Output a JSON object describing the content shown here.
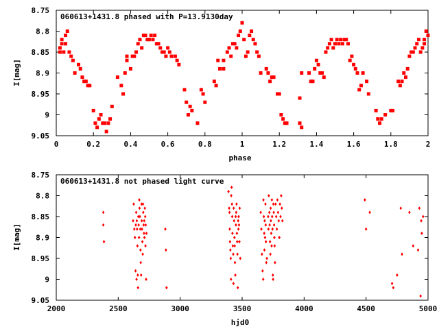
{
  "chart_data": [
    {
      "type": "scatter",
      "title": "060613+1431.8 phased with P=13.9130day",
      "xlabel": "phase",
      "ylabel": "I[mag]",
      "xlim": [
        0,
        2
      ],
      "ylim": [
        9.05,
        8.75
      ],
      "y_inverted": true,
      "grid": false,
      "marker": "filled-square",
      "color": "#ff0000",
      "x_ticks": [
        "0",
        "0.2",
        "0.4",
        "0.6",
        "0.8",
        "1",
        "1.2",
        "1.4",
        "1.6",
        "1.8",
        "2"
      ],
      "y_ticks": [
        "8.75",
        "8.8",
        "8.85",
        "8.9",
        "8.95",
        "9",
        "9.05"
      ],
      "points": [
        [
          0.02,
          8.84
        ],
        [
          0.02,
          8.85
        ],
        [
          0.03,
          8.82
        ],
        [
          0.03,
          8.83
        ],
        [
          0.04,
          8.85
        ],
        [
          0.05,
          8.81
        ],
        [
          0.05,
          8.83
        ],
        [
          0.06,
          8.8
        ],
        [
          0.07,
          8.85
        ],
        [
          0.08,
          8.86
        ],
        [
          0.09,
          8.87
        ],
        [
          0.1,
          8.9
        ],
        [
          0.12,
          8.88
        ],
        [
          0.13,
          8.89
        ],
        [
          0.14,
          8.91
        ],
        [
          0.15,
          8.92
        ],
        [
          0.16,
          8.92
        ],
        [
          0.17,
          8.93
        ],
        [
          0.18,
          8.93
        ],
        [
          0.2,
          8.99
        ],
        [
          0.21,
          9.02
        ],
        [
          0.22,
          9.03
        ],
        [
          0.23,
          9.01
        ],
        [
          0.24,
          9.0
        ],
        [
          0.25,
          9.02
        ],
        [
          0.26,
          9.02
        ],
        [
          0.27,
          9.04
        ],
        [
          0.28,
          9.02
        ],
        [
          0.29,
          9.01
        ],
        [
          0.3,
          8.98
        ],
        [
          0.33,
          8.91
        ],
        [
          0.35,
          8.93
        ],
        [
          0.36,
          8.95
        ],
        [
          0.37,
          8.9
        ],
        [
          0.38,
          8.87
        ],
        [
          0.38,
          8.86
        ],
        [
          0.4,
          8.89
        ],
        [
          0.41,
          8.86
        ],
        [
          0.42,
          8.86
        ],
        [
          0.43,
          8.85
        ],
        [
          0.44,
          8.83
        ],
        [
          0.45,
          8.82
        ],
        [
          0.46,
          8.84
        ],
        [
          0.47,
          8.81
        ],
        [
          0.48,
          8.81
        ],
        [
          0.49,
          8.82
        ],
        [
          0.5,
          8.82
        ],
        [
          0.51,
          8.81
        ],
        [
          0.52,
          8.82
        ],
        [
          0.53,
          8.81
        ],
        [
          0.54,
          8.83
        ],
        [
          0.55,
          8.83
        ],
        [
          0.56,
          8.84
        ],
        [
          0.57,
          8.85
        ],
        [
          0.58,
          8.85
        ],
        [
          0.59,
          8.86
        ],
        [
          0.6,
          8.84
        ],
        [
          0.61,
          8.85
        ],
        [
          0.62,
          8.86
        ],
        [
          0.64,
          8.86
        ],
        [
          0.65,
          8.87
        ],
        [
          0.66,
          8.88
        ],
        [
          0.69,
          8.94
        ],
        [
          0.7,
          8.97
        ],
        [
          0.71,
          9.0
        ],
        [
          0.72,
          8.98
        ],
        [
          0.73,
          8.99
        ],
        [
          0.76,
          9.02
        ],
        [
          0.78,
          8.94
        ],
        [
          0.79,
          8.95
        ],
        [
          0.8,
          8.97
        ],
        [
          0.85,
          8.92
        ],
        [
          0.86,
          8.93
        ],
        [
          0.87,
          8.87
        ],
        [
          0.88,
          8.89
        ],
        [
          0.9,
          8.87
        ],
        [
          0.9,
          8.89
        ],
        [
          0.92,
          8.85
        ],
        [
          0.93,
          8.84
        ],
        [
          0.94,
          8.86
        ],
        [
          0.95,
          8.83
        ],
        [
          0.96,
          8.83
        ],
        [
          0.97,
          8.84
        ],
        [
          0.98,
          8.81
        ],
        [
          0.99,
          8.8
        ],
        [
          1.0,
          8.78
        ],
        [
          1.01,
          8.82
        ],
        [
          1.02,
          8.86
        ],
        [
          1.03,
          8.85
        ],
        [
          1.04,
          8.81
        ],
        [
          1.05,
          8.8
        ],
        [
          1.06,
          8.82
        ],
        [
          1.07,
          8.83
        ],
        [
          1.08,
          8.85
        ],
        [
          1.09,
          8.86
        ],
        [
          1.1,
          8.9
        ],
        [
          1.13,
          8.89
        ],
        [
          1.14,
          8.9
        ],
        [
          1.15,
          8.92
        ],
        [
          1.16,
          8.91
        ],
        [
          1.17,
          8.91
        ],
        [
          1.19,
          8.95
        ],
        [
          1.2,
          8.95
        ],
        [
          1.21,
          9.0
        ],
        [
          1.22,
          9.01
        ],
        [
          1.23,
          9.02
        ],
        [
          1.24,
          9.02
        ],
        [
          1.31,
          8.96
        ],
        [
          1.31,
          9.02
        ],
        [
          1.32,
          9.03
        ],
        [
          1.32,
          8.9
        ],
        [
          1.36,
          8.9
        ],
        [
          1.37,
          8.92
        ],
        [
          1.38,
          8.92
        ],
        [
          1.39,
          8.89
        ],
        [
          1.4,
          8.87
        ],
        [
          1.41,
          8.88
        ],
        [
          1.42,
          8.9
        ],
        [
          1.43,
          8.9
        ],
        [
          1.44,
          8.91
        ],
        [
          1.45,
          8.85
        ],
        [
          1.46,
          8.84
        ],
        [
          1.47,
          8.83
        ],
        [
          1.48,
          8.82
        ],
        [
          1.49,
          8.84
        ],
        [
          1.5,
          8.83
        ],
        [
          1.51,
          8.82
        ],
        [
          1.52,
          8.83
        ],
        [
          1.53,
          8.82
        ],
        [
          1.54,
          8.83
        ],
        [
          1.55,
          8.82
        ],
        [
          1.56,
          8.82
        ],
        [
          1.57,
          8.83
        ],
        [
          1.58,
          8.87
        ],
        [
          1.59,
          8.86
        ],
        [
          1.6,
          8.88
        ],
        [
          1.61,
          8.89
        ],
        [
          1.62,
          8.9
        ],
        [
          1.63,
          8.94
        ],
        [
          1.64,
          8.93
        ],
        [
          1.65,
          8.9
        ],
        [
          1.67,
          8.92
        ],
        [
          1.68,
          8.95
        ],
        [
          1.72,
          8.99
        ],
        [
          1.73,
          9.01
        ],
        [
          1.74,
          9.02
        ],
        [
          1.75,
          9.01
        ],
        [
          1.77,
          9.0
        ],
        [
          1.8,
          8.99
        ],
        [
          1.81,
          8.99
        ],
        [
          1.84,
          8.92
        ],
        [
          1.85,
          8.93
        ],
        [
          1.86,
          8.92
        ],
        [
          1.87,
          8.9
        ],
        [
          1.88,
          8.91
        ],
        [
          1.89,
          8.89
        ],
        [
          1.9,
          8.86
        ],
        [
          1.91,
          8.85
        ],
        [
          1.92,
          8.85
        ],
        [
          1.93,
          8.84
        ],
        [
          1.94,
          8.83
        ],
        [
          1.95,
          8.82
        ],
        [
          1.96,
          8.85
        ],
        [
          1.97,
          8.84
        ],
        [
          1.98,
          8.82
        ],
        [
          1.99,
          8.8
        ],
        [
          2.0,
          8.81
        ],
        [
          1.98,
          8.83
        ]
      ]
    },
    {
      "type": "scatter",
      "title": "060613+1431.8 not phased light curve",
      "xlabel": "hjd0",
      "ylabel": "I[mag]",
      "xlim": [
        2000,
        5000
      ],
      "ylim": [
        9.05,
        8.75
      ],
      "y_inverted": true,
      "grid": false,
      "marker": "small-diamond",
      "color": "#ff0000",
      "x_ticks": [
        "2000",
        "2500",
        "3000",
        "3500",
        "4000",
        "4500",
        "5000"
      ],
      "y_ticks": [
        "8.75",
        "8.8",
        "8.85",
        "8.9",
        "8.95",
        "9",
        "9.05"
      ],
      "points": [
        [
          2380,
          8.84
        ],
        [
          2380,
          8.87
        ],
        [
          2385,
          8.91
        ],
        [
          2620,
          8.86
        ],
        [
          2625,
          8.82
        ],
        [
          2630,
          8.88
        ],
        [
          2635,
          8.9
        ],
        [
          2640,
          8.98
        ],
        [
          2642,
          8.87
        ],
        [
          2645,
          8.84
        ],
        [
          2648,
          9.0
        ],
        [
          2650,
          8.86
        ],
        [
          2652,
          8.88
        ],
        [
          2655,
          8.92
        ],
        [
          2658,
          8.99
        ],
        [
          2660,
          9.02
        ],
        [
          2662,
          8.85
        ],
        [
          2665,
          8.87
        ],
        [
          2668,
          8.9
        ],
        [
          2670,
          8.81
        ],
        [
          2672,
          8.83
        ],
        [
          2675,
          8.85
        ],
        [
          2678,
          8.88
        ],
        [
          2680,
          8.93
        ],
        [
          2682,
          8.96
        ],
        [
          2685,
          8.99
        ],
        [
          2688,
          8.82
        ],
        [
          2690,
          8.86
        ],
        [
          2692,
          8.88
        ],
        [
          2695,
          8.91
        ],
        [
          2698,
          8.94
        ],
        [
          2700,
          8.82
        ],
        [
          2702,
          8.84
        ],
        [
          2705,
          8.87
        ],
        [
          2708,
          8.89
        ],
        [
          2710,
          8.86
        ],
        [
          2712,
          8.9
        ],
        [
          2715,
          8.83
        ],
        [
          2718,
          8.85
        ],
        [
          2720,
          8.92
        ],
        [
          2722,
          8.87
        ],
        [
          2725,
          9.0
        ],
        [
          2728,
          8.89
        ],
        [
          2880,
          8.88
        ],
        [
          2885,
          8.93
        ],
        [
          2890,
          9.02
        ],
        [
          3390,
          8.79
        ],
        [
          3395,
          8.83
        ],
        [
          3398,
          8.84
        ],
        [
          3400,
          8.88
        ],
        [
          3402,
          8.91
        ],
        [
          3405,
          8.93
        ],
        [
          3408,
          8.95
        ],
        [
          3410,
          9.0
        ],
        [
          3412,
          8.8
        ],
        [
          3415,
          8.78
        ],
        [
          3418,
          8.82
        ],
        [
          3420,
          8.85
        ],
        [
          3422,
          8.89
        ],
        [
          3425,
          8.92
        ],
        [
          3428,
          8.94
        ],
        [
          3430,
          9.01
        ],
        [
          3432,
          8.83
        ],
        [
          3435,
          8.86
        ],
        [
          3438,
          8.9
        ],
        [
          3440,
          8.92
        ],
        [
          3442,
          8.96
        ],
        [
          3445,
          8.99
        ],
        [
          3448,
          8.85
        ],
        [
          3450,
          8.87
        ],
        [
          3452,
          8.84
        ],
        [
          3455,
          8.82
        ],
        [
          3458,
          8.89
        ],
        [
          3460,
          8.91
        ],
        [
          3462,
          8.94
        ],
        [
          3465,
          9.02
        ],
        [
          3468,
          8.86
        ],
        [
          3470,
          8.88
        ],
        [
          3472,
          8.85
        ],
        [
          3475,
          8.87
        ],
        [
          3478,
          8.91
        ],
        [
          3480,
          8.83
        ],
        [
          3485,
          8.95
        ],
        [
          3650,
          8.84
        ],
        [
          3655,
          8.88
        ],
        [
          3660,
          8.94
        ],
        [
          3665,
          8.98
        ],
        [
          3670,
          9.0
        ],
        [
          3672,
          8.81
        ],
        [
          3675,
          8.85
        ],
        [
          3678,
          8.89
        ],
        [
          3680,
          8.93
        ],
        [
          3682,
          8.86
        ],
        [
          3685,
          8.9
        ],
        [
          3688,
          8.82
        ],
        [
          3690,
          8.87
        ],
        [
          3692,
          8.91
        ],
        [
          3695,
          8.96
        ],
        [
          3700,
          8.95
        ],
        [
          3710,
          8.85
        ],
        [
          3712,
          8.88
        ],
        [
          3715,
          8.8
        ],
        [
          3720,
          8.84
        ],
        [
          3722,
          8.87
        ],
        [
          3725,
          8.91
        ],
        [
          3728,
          8.94
        ],
        [
          3730,
          8.83
        ],
        [
          3732,
          8.86
        ],
        [
          3735,
          8.89
        ],
        [
          3738,
          8.92
        ],
        [
          3740,
          8.81
        ],
        [
          3742,
          8.85
        ],
        [
          3745,
          8.88
        ],
        [
          3748,
          8.99
        ],
        [
          3750,
          9.0
        ],
        [
          3752,
          8.82
        ],
        [
          3755,
          8.84
        ],
        [
          3758,
          8.87
        ],
        [
          3760,
          8.9
        ],
        [
          3762,
          8.92
        ],
        [
          3765,
          8.96
        ],
        [
          3770,
          8.82
        ],
        [
          3775,
          8.85
        ],
        [
          3780,
          8.88
        ],
        [
          3785,
          8.81
        ],
        [
          3790,
          8.84
        ],
        [
          3795,
          8.86
        ],
        [
          3800,
          8.9
        ],
        [
          3805,
          8.82
        ],
        [
          3810,
          8.85
        ],
        [
          3815,
          8.8
        ],
        [
          3820,
          8.83
        ],
        [
          3825,
          8.86
        ],
        [
          4490,
          8.81
        ],
        [
          4500,
          8.88
        ],
        [
          4530,
          8.84
        ],
        [
          4710,
          9.01
        ],
        [
          4720,
          9.02
        ],
        [
          4750,
          8.99
        ],
        [
          4780,
          8.83
        ],
        [
          4790,
          8.94
        ],
        [
          4850,
          8.84
        ],
        [
          4880,
          8.92
        ],
        [
          4920,
          8.93
        ],
        [
          4930,
          8.83
        ],
        [
          4940,
          9.04
        ],
        [
          4945,
          8.86
        ],
        [
          4950,
          8.89
        ],
        [
          4960,
          8.85
        ]
      ]
    }
  ]
}
